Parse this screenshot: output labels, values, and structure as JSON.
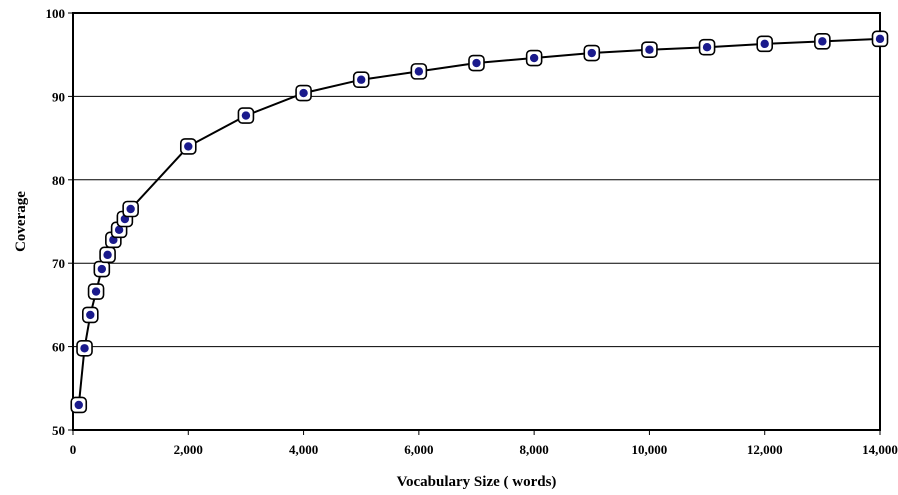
{
  "chart_data": {
    "type": "line",
    "title": "",
    "xlabel": "Vocabulary Size ( words)",
    "ylabel": "Coverage",
    "xlim": [
      0,
      14000
    ],
    "ylim": [
      50,
      100
    ],
    "x_ticks": [
      0,
      2000,
      4000,
      6000,
      8000,
      10000,
      12000,
      14000
    ],
    "x_tick_labels": [
      "0",
      "2,000",
      "4,000",
      "6,000",
      "8,000",
      "10,000",
      "12,000",
      "14,000"
    ],
    "y_ticks": [
      50,
      60,
      70,
      80,
      90,
      100
    ],
    "y_tick_labels": [
      "50",
      "60",
      "70",
      "80",
      "90",
      "100"
    ],
    "grid": "horizontal",
    "legend": "none",
    "colors": {
      "line": "#000000",
      "marker_fill": "#1a1a8c",
      "marker_ring": "#000000",
      "grid": "#000000"
    },
    "series": [
      {
        "x": [
          100,
          200,
          300,
          400,
          500,
          600,
          700,
          800,
          900,
          1000,
          2000,
          3000,
          4000,
          5000,
          6000,
          7000,
          8000,
          9000,
          10000,
          11000,
          12000,
          13000,
          14000
        ],
        "y": [
          53.0,
          59.8,
          63.8,
          66.6,
          69.3,
          71.0,
          72.8,
          74.0,
          75.3,
          76.5,
          84.0,
          87.7,
          90.4,
          92.0,
          93.0,
          94.0,
          94.6,
          95.2,
          95.6,
          95.9,
          96.3,
          96.6,
          96.9
        ]
      }
    ]
  }
}
